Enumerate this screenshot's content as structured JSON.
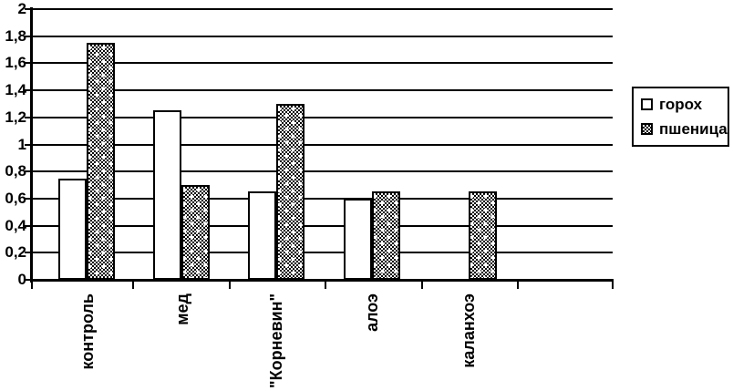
{
  "chart_data": {
    "type": "bar",
    "title": "",
    "xlabel": "",
    "ylabel": "",
    "categories": [
      "контроль",
      "мед",
      "\"Корневин\"",
      "алоэ",
      "каланхоэ"
    ],
    "series": [
      {
        "name": "горох",
        "fill": "white",
        "values": [
          0.75,
          1.25,
          0.65,
          0.6,
          0
        ]
      },
      {
        "name": "пшеница",
        "fill": "pattern",
        "values": [
          1.75,
          0.7,
          1.3,
          0.65,
          0.65
        ]
      }
    ],
    "ylim": [
      0,
      2
    ],
    "ytick_step": 0.2,
    "ytick_labels": [
      "0",
      "0,2",
      "0,4",
      "0,6",
      "0,8",
      "1",
      "1,2",
      "1,4",
      "1,6",
      "1,8",
      "2"
    ],
    "grid": true,
    "legend_position": "right",
    "colors": {
      "foreground": "#000000",
      "background": "#ffffff"
    }
  }
}
